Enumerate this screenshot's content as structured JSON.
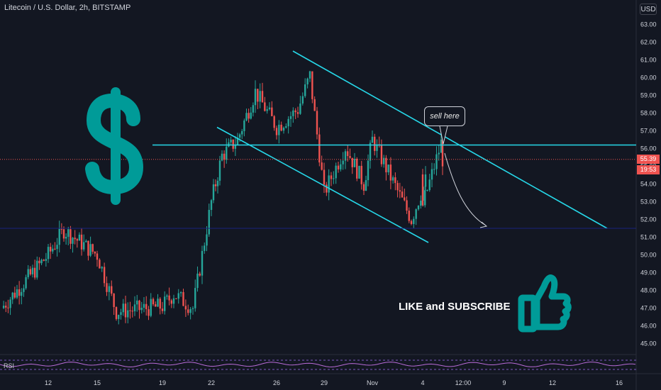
{
  "header": {
    "title": "Litecoin / U.S. Dollar, 2h, BITSTAMP",
    "currency_button": "USD"
  },
  "annotations": {
    "callout": "sell here",
    "cta": "LIKE and SUBSCRIBE",
    "dollar_icon": "dollar-sign-icon",
    "thumb_icon": "thumbs-up-icon"
  },
  "indicator": {
    "label": "RSI"
  },
  "price_tags": {
    "last_price": "55.39",
    "countdown": "19:53"
  },
  "colors": {
    "background": "#131722",
    "up": "#26a69a",
    "down": "#ef5350",
    "trendline": "#26d7e8",
    "brand": "#009b98"
  },
  "chart_data": {
    "type": "candlestick",
    "title": "Litecoin / U.S. Dollar, 2h, BITSTAMP",
    "y_axis": {
      "ticks": [
        45.0,
        46.0,
        47.0,
        48.0,
        49.0,
        50.0,
        51.0,
        52.0,
        53.0,
        54.0,
        55.0,
        56.0,
        57.0,
        58.0,
        59.0,
        60.0,
        61.0,
        62.0,
        63.0
      ],
      "range": [
        44.3,
        63.7
      ]
    },
    "x_axis": {
      "ticks": [
        "12",
        "15",
        "19",
        "22",
        "26",
        "29",
        "Nov",
        "4",
        "12:00",
        "9",
        "12",
        "16"
      ]
    },
    "last_price": 55.39,
    "series": [
      {
        "name": "close",
        "points": [
          [
            "start",
            47.0
          ],
          [
            "12",
            50.0
          ],
          [
            "12-13",
            51.4
          ],
          [
            "15",
            50.0
          ],
          [
            "16",
            46.8
          ],
          [
            "19",
            47.1
          ],
          [
            "20",
            47.8
          ],
          [
            "21",
            47.0
          ],
          [
            "22",
            53.0
          ],
          [
            "23",
            55.6
          ],
          [
            "24",
            56.5
          ],
          [
            "25",
            59.2
          ],
          [
            "26",
            57.2
          ],
          [
            "27",
            58.2
          ],
          [
            "28",
            60.1
          ],
          [
            "29",
            53.5
          ],
          [
            "30",
            56.1
          ],
          [
            "31",
            54.0
          ],
          [
            "Nov",
            56.5
          ],
          [
            "2",
            52.0
          ],
          [
            "3",
            54.2
          ],
          [
            "4",
            52.8
          ],
          [
            "5",
            56.3
          ],
          [
            "last",
            55.4
          ]
        ]
      }
    ],
    "trendlines": [
      {
        "name": "resistance",
        "from": [
          "20",
          56.2
        ],
        "to": [
          "16",
          56.2
        ]
      },
      {
        "name": "channel-upper",
        "from": [
          "27",
          61.5
        ],
        "to": [
          "12",
          51.5
        ]
      },
      {
        "name": "channel-lower",
        "from": [
          "22",
          57.2
        ],
        "to": [
          "4",
          50.7
        ]
      },
      {
        "name": "support",
        "from": [
          "start",
          51.5
        ],
        "to": [
          "16",
          51.5
        ]
      }
    ]
  }
}
